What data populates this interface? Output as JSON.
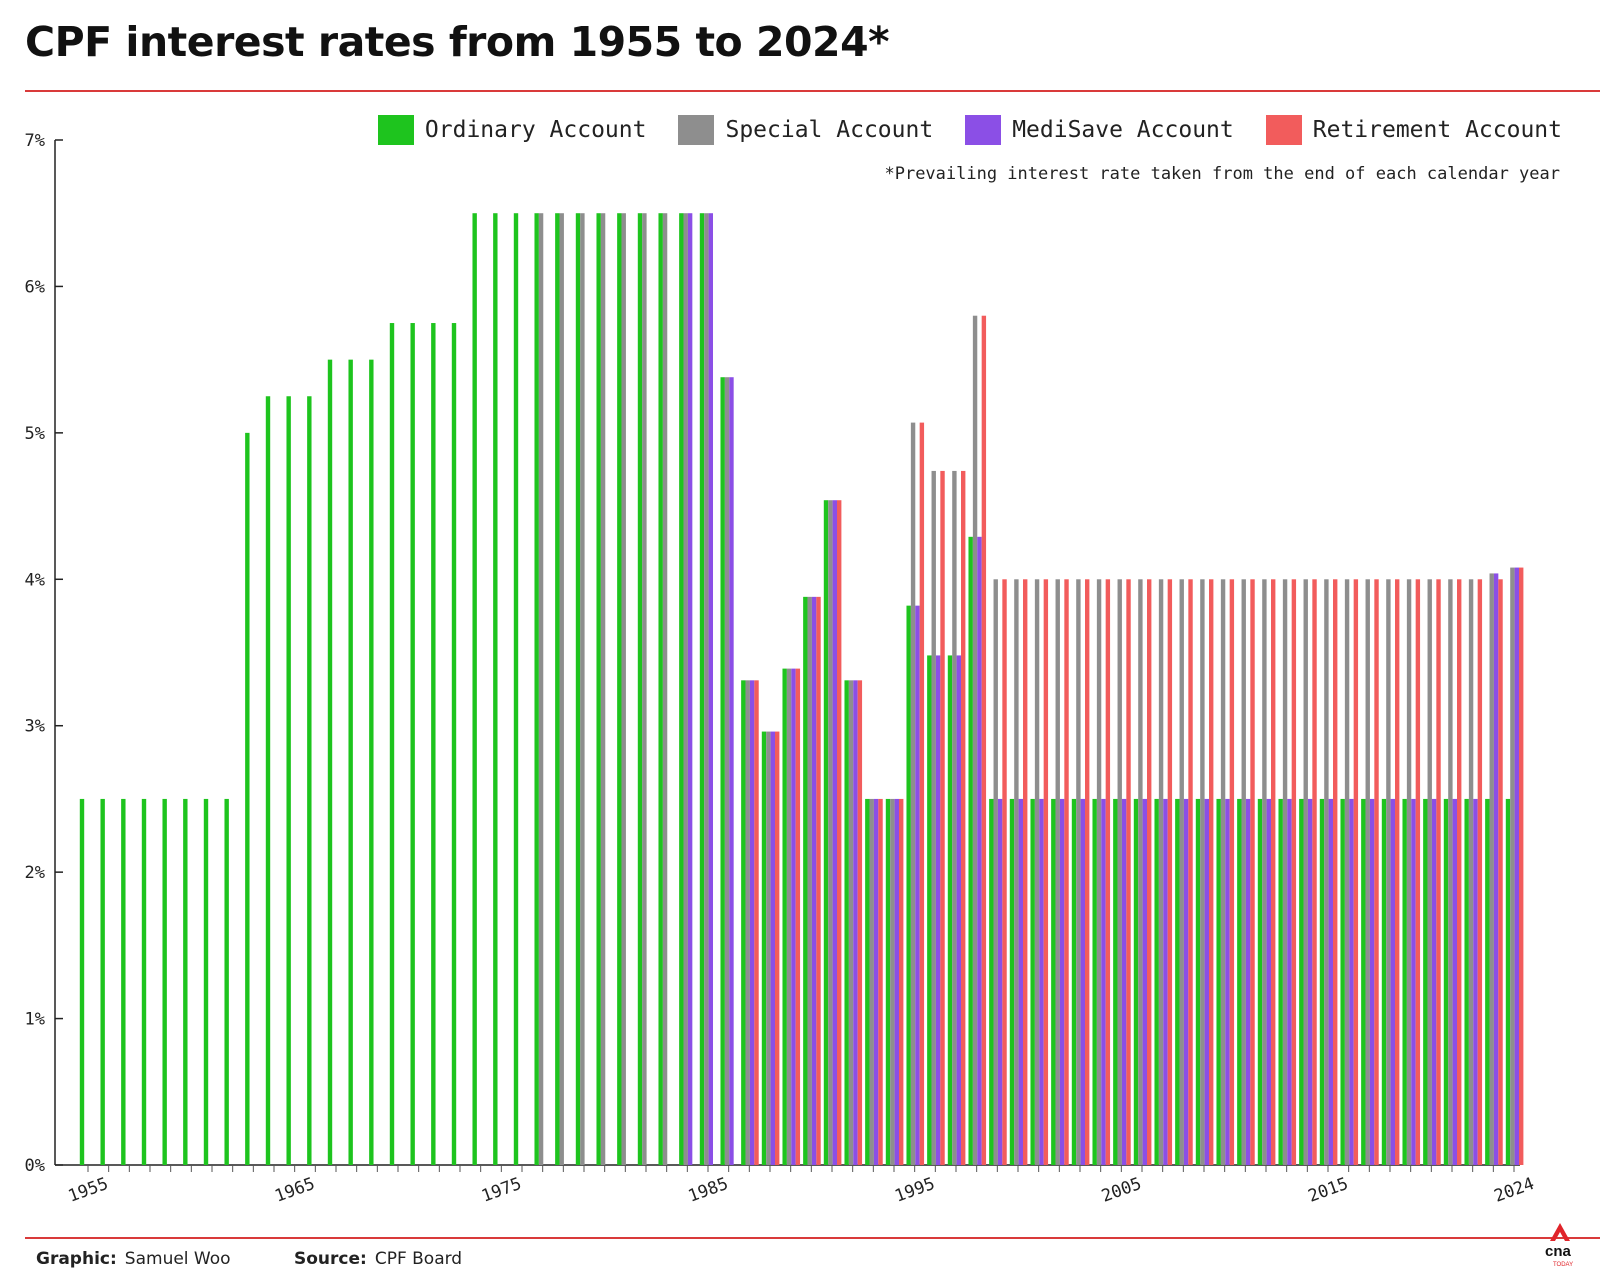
{
  "chart_data": {
    "type": "bar",
    "title": "CPF interest rates from 1955 to 2024*",
    "note": "*Prevailing interest rate taken from the end of each calendar year",
    "xlabel": "",
    "ylabel": "",
    "ylim": [
      0,
      7
    ],
    "x_range": [
      1955,
      2024
    ],
    "y_ticks": [
      "0%",
      "1%",
      "2%",
      "3%",
      "4%",
      "5%",
      "6%",
      "7%"
    ],
    "x_ticks": [
      "1955",
      "1965",
      "1975",
      "1985",
      "1995",
      "2005",
      "2015",
      "2024"
    ],
    "legend_position": "top-right",
    "grid": false,
    "series": [
      {
        "name": "Ordinary Account",
        "color": "#1ec41e",
        "points": [
          [
            1955,
            2.5
          ],
          [
            1956,
            2.5
          ],
          [
            1957,
            2.5
          ],
          [
            1958,
            2.5
          ],
          [
            1959,
            2.5
          ],
          [
            1960,
            2.5
          ],
          [
            1961,
            2.5
          ],
          [
            1962,
            2.5
          ],
          [
            1963,
            5.0
          ],
          [
            1964,
            5.25
          ],
          [
            1965,
            5.25
          ],
          [
            1966,
            5.25
          ],
          [
            1967,
            5.5
          ],
          [
            1968,
            5.5
          ],
          [
            1969,
            5.5
          ],
          [
            1970,
            5.75
          ],
          [
            1971,
            5.75
          ],
          [
            1972,
            5.75
          ],
          [
            1973,
            5.75
          ],
          [
            1974,
            6.5
          ],
          [
            1975,
            6.5
          ],
          [
            1976,
            6.5
          ],
          [
            1977,
            6.5
          ],
          [
            1978,
            6.5
          ],
          [
            1979,
            6.5
          ],
          [
            1980,
            6.5
          ],
          [
            1981,
            6.5
          ],
          [
            1982,
            6.5
          ],
          [
            1983,
            6.5
          ],
          [
            1984,
            6.5
          ],
          [
            1985,
            6.5
          ],
          [
            1986,
            5.38
          ],
          [
            1987,
            3.31
          ],
          [
            1988,
            2.96
          ],
          [
            1989,
            3.39
          ],
          [
            1990,
            3.88
          ],
          [
            1991,
            4.54
          ],
          [
            1992,
            3.31
          ],
          [
            1993,
            2.5
          ],
          [
            1994,
            2.5
          ],
          [
            1995,
            3.82
          ],
          [
            1996,
            3.48
          ],
          [
            1997,
            3.48
          ],
          [
            1998,
            4.29
          ],
          [
            1999,
            2.5
          ],
          [
            2000,
            2.5
          ],
          [
            2001,
            2.5
          ],
          [
            2002,
            2.5
          ],
          [
            2003,
            2.5
          ],
          [
            2004,
            2.5
          ],
          [
            2005,
            2.5
          ],
          [
            2006,
            2.5
          ],
          [
            2007,
            2.5
          ],
          [
            2008,
            2.5
          ],
          [
            2009,
            2.5
          ],
          [
            2010,
            2.5
          ],
          [
            2011,
            2.5
          ],
          [
            2012,
            2.5
          ],
          [
            2013,
            2.5
          ],
          [
            2014,
            2.5
          ],
          [
            2015,
            2.5
          ],
          [
            2016,
            2.5
          ],
          [
            2017,
            2.5
          ],
          [
            2018,
            2.5
          ],
          [
            2019,
            2.5
          ],
          [
            2020,
            2.5
          ],
          [
            2021,
            2.5
          ],
          [
            2022,
            2.5
          ],
          [
            2023,
            2.5
          ],
          [
            2024,
            2.5
          ]
        ]
      },
      {
        "name": "Special Account",
        "color": "#8e8e8e",
        "points": [
          [
            1977,
            6.5
          ],
          [
            1978,
            6.5
          ],
          [
            1979,
            6.5
          ],
          [
            1980,
            6.5
          ],
          [
            1981,
            6.5
          ],
          [
            1982,
            6.5
          ],
          [
            1983,
            6.5
          ],
          [
            1984,
            6.5
          ],
          [
            1985,
            6.5
          ],
          [
            1986,
            5.38
          ],
          [
            1987,
            3.31
          ],
          [
            1988,
            2.96
          ],
          [
            1989,
            3.39
          ],
          [
            1990,
            3.88
          ],
          [
            1991,
            4.54
          ],
          [
            1992,
            3.31
          ],
          [
            1993,
            2.5
          ],
          [
            1994,
            2.5
          ],
          [
            1995,
            5.07
          ],
          [
            1996,
            4.74
          ],
          [
            1997,
            4.74
          ],
          [
            1998,
            5.8
          ],
          [
            1999,
            4.0
          ],
          [
            2000,
            4.0
          ],
          [
            2001,
            4.0
          ],
          [
            2002,
            4.0
          ],
          [
            2003,
            4.0
          ],
          [
            2004,
            4.0
          ],
          [
            2005,
            4.0
          ],
          [
            2006,
            4.0
          ],
          [
            2007,
            4.0
          ],
          [
            2008,
            4.0
          ],
          [
            2009,
            4.0
          ],
          [
            2010,
            4.0
          ],
          [
            2011,
            4.0
          ],
          [
            2012,
            4.0
          ],
          [
            2013,
            4.0
          ],
          [
            2014,
            4.0
          ],
          [
            2015,
            4.0
          ],
          [
            2016,
            4.0
          ],
          [
            2017,
            4.0
          ],
          [
            2018,
            4.0
          ],
          [
            2019,
            4.0
          ],
          [
            2020,
            4.0
          ],
          [
            2021,
            4.0
          ],
          [
            2022,
            4.0
          ],
          [
            2023,
            4.04
          ],
          [
            2024,
            4.08
          ]
        ]
      },
      {
        "name": "MediSave Account",
        "color": "#8b4fe6",
        "points": [
          [
            1984,
            6.5
          ],
          [
            1985,
            6.5
          ],
          [
            1986,
            5.38
          ],
          [
            1987,
            3.31
          ],
          [
            1988,
            2.96
          ],
          [
            1989,
            3.39
          ],
          [
            1990,
            3.88
          ],
          [
            1991,
            4.54
          ],
          [
            1992,
            3.31
          ],
          [
            1993,
            2.5
          ],
          [
            1994,
            2.5
          ],
          [
            1995,
            3.82
          ],
          [
            1996,
            3.48
          ],
          [
            1997,
            3.48
          ],
          [
            1998,
            4.29
          ],
          [
            1999,
            2.5
          ],
          [
            2000,
            2.5
          ],
          [
            2001,
            2.5
          ],
          [
            2002,
            2.5
          ],
          [
            2003,
            2.5
          ],
          [
            2004,
            2.5
          ],
          [
            2005,
            2.5
          ],
          [
            2006,
            2.5
          ],
          [
            2007,
            2.5
          ],
          [
            2008,
            2.5
          ],
          [
            2009,
            2.5
          ],
          [
            2010,
            2.5
          ],
          [
            2011,
            2.5
          ],
          [
            2012,
            2.5
          ],
          [
            2013,
            2.5
          ],
          [
            2014,
            2.5
          ],
          [
            2015,
            2.5
          ],
          [
            2016,
            2.5
          ],
          [
            2017,
            2.5
          ],
          [
            2018,
            2.5
          ],
          [
            2019,
            2.5
          ],
          [
            2020,
            2.5
          ],
          [
            2021,
            2.5
          ],
          [
            2022,
            2.5
          ],
          [
            2023,
            4.04
          ],
          [
            2024,
            4.08
          ]
        ]
      },
      {
        "name": "Retirement Account",
        "color": "#f25c5c",
        "points": [
          [
            1987,
            3.31
          ],
          [
            1988,
            2.96
          ],
          [
            1989,
            3.39
          ],
          [
            1990,
            3.88
          ],
          [
            1991,
            4.54
          ],
          [
            1992,
            3.31
          ],
          [
            1993,
            2.5
          ],
          [
            1994,
            2.5
          ],
          [
            1995,
            5.07
          ],
          [
            1996,
            4.74
          ],
          [
            1997,
            4.74
          ],
          [
            1998,
            5.8
          ],
          [
            1999,
            4.0
          ],
          [
            2000,
            4.0
          ],
          [
            2001,
            4.0
          ],
          [
            2002,
            4.0
          ],
          [
            2003,
            4.0
          ],
          [
            2004,
            4.0
          ],
          [
            2005,
            4.0
          ],
          [
            2006,
            4.0
          ],
          [
            2007,
            4.0
          ],
          [
            2008,
            4.0
          ],
          [
            2009,
            4.0
          ],
          [
            2010,
            4.0
          ],
          [
            2011,
            4.0
          ],
          [
            2012,
            4.0
          ],
          [
            2013,
            4.0
          ],
          [
            2014,
            4.0
          ],
          [
            2015,
            4.0
          ],
          [
            2016,
            4.0
          ],
          [
            2017,
            4.0
          ],
          [
            2018,
            4.0
          ],
          [
            2019,
            4.0
          ],
          [
            2020,
            4.0
          ],
          [
            2021,
            4.0
          ],
          [
            2022,
            4.0
          ],
          [
            2023,
            4.0
          ],
          [
            2024,
            4.08
          ]
        ]
      }
    ]
  },
  "footer": {
    "credit_label": "Graphic:",
    "credit_value": "Samuel Woo",
    "source_label": "Source:",
    "source_value": "CPF Board"
  },
  "logo_text": "cna",
  "logo_subtext": "TODAY"
}
